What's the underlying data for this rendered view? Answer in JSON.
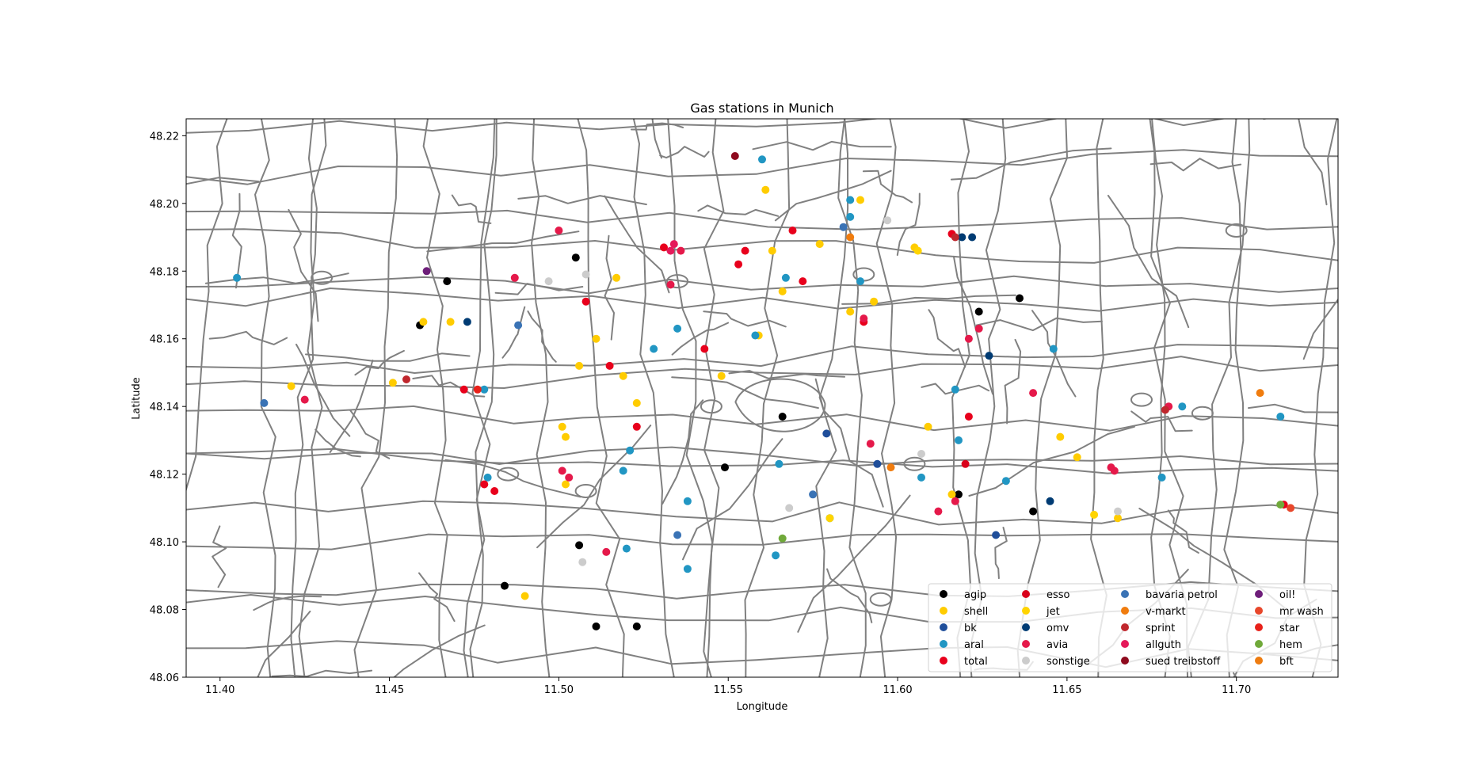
{
  "chart_data": {
    "type": "scatter",
    "title": "Gas stations in Munich",
    "xlabel": "Longitude",
    "ylabel": "Latitude",
    "xlim": [
      11.39,
      11.73
    ],
    "ylim": [
      48.06,
      48.225
    ],
    "xticks": [
      "11.40",
      "11.45",
      "11.50",
      "11.55",
      "11.60",
      "11.65",
      "11.70"
    ],
    "yticks": [
      "48.06",
      "48.08",
      "48.10",
      "48.12",
      "48.14",
      "48.16",
      "48.18",
      "48.20",
      "48.22"
    ],
    "grid": false,
    "legend_position": "lower-right",
    "background": "road network (gray lines)",
    "road_color": "#808080",
    "series": [
      {
        "name": "agip",
        "color": "#000000",
        "points": [
          [
            11.459,
            48.164
          ],
          [
            11.467,
            48.177
          ],
          [
            11.505,
            48.184
          ],
          [
            11.484,
            48.087
          ],
          [
            11.506,
            48.099
          ],
          [
            11.511,
            48.075
          ],
          [
            11.523,
            48.075
          ],
          [
            11.549,
            48.122
          ],
          [
            11.566,
            48.137
          ],
          [
            11.618,
            48.114
          ],
          [
            11.624,
            48.168
          ],
          [
            11.636,
            48.172
          ],
          [
            11.64,
            48.109
          ]
        ]
      },
      {
        "name": "shell",
        "color": "#FFCC00",
        "points": [
          [
            11.421,
            48.146
          ],
          [
            11.451,
            48.147
          ],
          [
            11.46,
            48.165
          ],
          [
            11.468,
            48.165
          ],
          [
            11.49,
            48.084
          ],
          [
            11.501,
            48.134
          ],
          [
            11.502,
            48.131
          ],
          [
            11.502,
            48.117
          ],
          [
            11.506,
            48.152
          ],
          [
            11.511,
            48.16
          ],
          [
            11.517,
            48.178
          ],
          [
            11.519,
            48.149
          ],
          [
            11.523,
            48.141
          ],
          [
            11.548,
            48.149
          ],
          [
            11.559,
            48.161
          ],
          [
            11.561,
            48.204
          ],
          [
            11.563,
            48.186
          ],
          [
            11.566,
            48.174
          ],
          [
            11.577,
            48.188
          ],
          [
            11.586,
            48.168
          ],
          [
            11.589,
            48.201
          ],
          [
            11.593,
            48.171
          ],
          [
            11.605,
            48.187
          ],
          [
            11.609,
            48.134
          ],
          [
            11.616,
            48.114
          ],
          [
            11.648,
            48.131
          ],
          [
            11.653,
            48.125
          ],
          [
            11.665,
            48.107
          ]
        ]
      },
      {
        "name": "bk",
        "color": "#1F4E9A",
        "points": [
          [
            11.579,
            48.132
          ],
          [
            11.594,
            48.123
          ],
          [
            11.629,
            48.102
          ]
        ]
      },
      {
        "name": "aral",
        "color": "#2196C3",
        "points": [
          [
            11.405,
            48.178
          ],
          [
            11.478,
            48.145
          ],
          [
            11.479,
            48.119
          ],
          [
            11.519,
            48.121
          ],
          [
            11.521,
            48.127
          ],
          [
            11.52,
            48.098
          ],
          [
            11.528,
            48.157
          ],
          [
            11.535,
            48.163
          ],
          [
            11.538,
            48.112
          ],
          [
            11.538,
            48.092
          ],
          [
            11.558,
            48.161
          ],
          [
            11.56,
            48.213
          ],
          [
            11.564,
            48.096
          ],
          [
            11.565,
            48.123
          ],
          [
            11.567,
            48.178
          ],
          [
            11.58,
            48.107
          ],
          [
            11.586,
            48.196
          ],
          [
            11.586,
            48.201
          ],
          [
            11.589,
            48.177
          ],
          [
            11.607,
            48.119
          ],
          [
            11.617,
            48.145
          ],
          [
            11.618,
            48.13
          ],
          [
            11.632,
            48.118
          ],
          [
            11.646,
            48.157
          ],
          [
            11.678,
            48.119
          ],
          [
            11.684,
            48.14
          ],
          [
            11.713,
            48.137
          ]
        ]
      },
      {
        "name": "total",
        "color": "#E8001C",
        "points": [
          [
            11.472,
            48.145
          ],
          [
            11.478,
            48.117
          ],
          [
            11.481,
            48.115
          ],
          [
            11.508,
            48.171
          ],
          [
            11.515,
            48.152
          ],
          [
            11.523,
            48.134
          ],
          [
            11.531,
            48.187
          ],
          [
            11.543,
            48.157
          ],
          [
            11.553,
            48.182
          ],
          [
            11.555,
            48.186
          ],
          [
            11.569,
            48.192
          ],
          [
            11.572,
            48.177
          ],
          [
            11.59,
            48.165
          ],
          [
            11.616,
            48.191
          ],
          [
            11.621,
            48.137
          ],
          [
            11.714,
            48.111
          ]
        ]
      },
      {
        "name": "esso",
        "color": "#D9001B",
        "points": [
          [
            11.62,
            48.123
          ]
        ]
      },
      {
        "name": "jet",
        "color": "#FFD400",
        "points": [
          [
            11.58,
            48.107
          ],
          [
            11.606,
            48.186
          ],
          [
            11.658,
            48.108
          ]
        ]
      },
      {
        "name": "omv",
        "color": "#003B73",
        "points": [
          [
            11.473,
            48.165
          ],
          [
            11.619,
            48.19
          ],
          [
            11.622,
            48.19
          ],
          [
            11.627,
            48.155
          ],
          [
            11.645,
            48.112
          ]
        ]
      },
      {
        "name": "avia",
        "color": "#E5194A",
        "points": [
          [
            11.425,
            48.142
          ],
          [
            11.487,
            48.178
          ],
          [
            11.501,
            48.121
          ],
          [
            11.503,
            48.119
          ],
          [
            11.5,
            48.192
          ],
          [
            11.514,
            48.097
          ],
          [
            11.536,
            48.186
          ],
          [
            11.533,
            48.176
          ],
          [
            11.59,
            48.166
          ],
          [
            11.592,
            48.129
          ],
          [
            11.612,
            48.109
          ],
          [
            11.617,
            48.112
          ],
          [
            11.621,
            48.16
          ],
          [
            11.624,
            48.163
          ],
          [
            11.64,
            48.144
          ],
          [
            11.663,
            48.122
          ],
          [
            11.664,
            48.121
          ],
          [
            11.68,
            48.14
          ]
        ]
      },
      {
        "name": "sonstige",
        "color": "#CCCCCC",
        "points": [
          [
            11.497,
            48.177
          ],
          [
            11.507,
            48.094
          ],
          [
            11.508,
            48.179
          ],
          [
            11.568,
            48.11
          ],
          [
            11.597,
            48.195
          ],
          [
            11.607,
            48.126
          ],
          [
            11.665,
            48.109
          ]
        ]
      },
      {
        "name": "bavaria petrol",
        "color": "#3A73B5",
        "points": [
          [
            11.413,
            48.141
          ],
          [
            11.488,
            48.164
          ],
          [
            11.535,
            48.102
          ],
          [
            11.575,
            48.114
          ],
          [
            11.584,
            48.193
          ]
        ]
      },
      {
        "name": "v-markt",
        "color": "#F07C0E",
        "points": [
          [
            11.586,
            48.19
          ],
          [
            11.598,
            48.122
          ],
          [
            11.707,
            48.144
          ]
        ]
      },
      {
        "name": "sprint",
        "color": "#C0272D",
        "points": [
          [
            11.455,
            48.148
          ],
          [
            11.617,
            48.19
          ],
          [
            11.679,
            48.139
          ]
        ]
      },
      {
        "name": "allguth",
        "color": "#E5195A",
        "points": [
          [
            11.533,
            48.186
          ],
          [
            11.534,
            48.188
          ]
        ]
      },
      {
        "name": "sued treibstoff",
        "color": "#8E0A1E",
        "points": [
          [
            11.552,
            48.214
          ]
        ]
      },
      {
        "name": "oil!",
        "color": "#6E1E7A",
        "points": [
          [
            11.461,
            48.18
          ]
        ]
      },
      {
        "name": "mr wash",
        "color": "#E8472B",
        "points": [
          [
            11.716,
            48.11
          ]
        ]
      },
      {
        "name": "star",
        "color": "#E8211A",
        "points": [
          [
            11.476,
            48.145
          ]
        ]
      },
      {
        "name": "hem",
        "color": "#70A93A",
        "points": [
          [
            11.566,
            48.101
          ],
          [
            11.713,
            48.111
          ]
        ]
      },
      {
        "name": "bft",
        "color": "#EE7C10",
        "points": []
      }
    ]
  }
}
